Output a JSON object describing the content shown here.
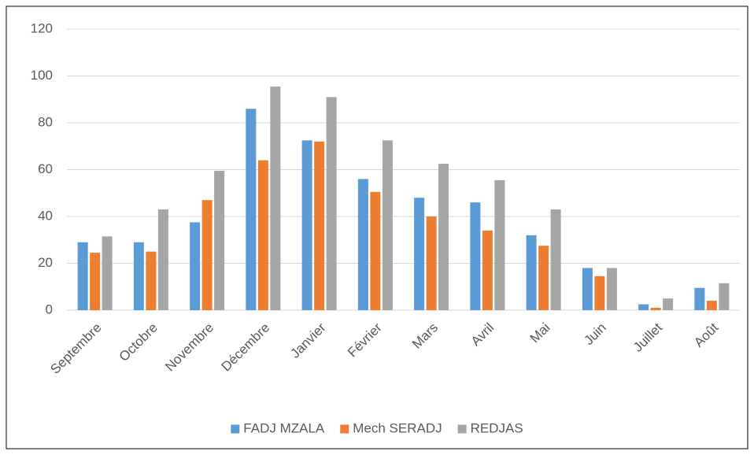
{
  "chart_data": {
    "type": "bar",
    "categories": [
      "Septembre",
      "Octobre",
      "Novembre",
      "Décembre",
      "Janvier",
      "Février",
      "Mars",
      "Avril",
      "Mai",
      "Juin",
      "Juillet",
      "Août"
    ],
    "series": [
      {
        "name": "FADJ MZALA",
        "color": "#5b9bd5",
        "values": [
          29,
          29,
          37.5,
          86,
          72.5,
          56,
          48,
          46,
          32,
          18,
          2.5,
          9.5
        ]
      },
      {
        "name": "Mech SERADJ",
        "color": "#ed7d31",
        "values": [
          24.5,
          25,
          47,
          64,
          72,
          50.5,
          40,
          34,
          27.5,
          14.5,
          1,
          4
        ]
      },
      {
        "name": "REDJAS",
        "color": "#a5a5a5",
        "values": [
          31.5,
          43,
          59.5,
          95.5,
          91,
          72.5,
          62.5,
          55.5,
          43,
          18,
          5,
          11.5
        ]
      }
    ],
    "ylim": [
      0,
      120
    ],
    "yticks": [
      0,
      20,
      40,
      60,
      80,
      100,
      120
    ],
    "grid": true,
    "legend": "bottom"
  }
}
